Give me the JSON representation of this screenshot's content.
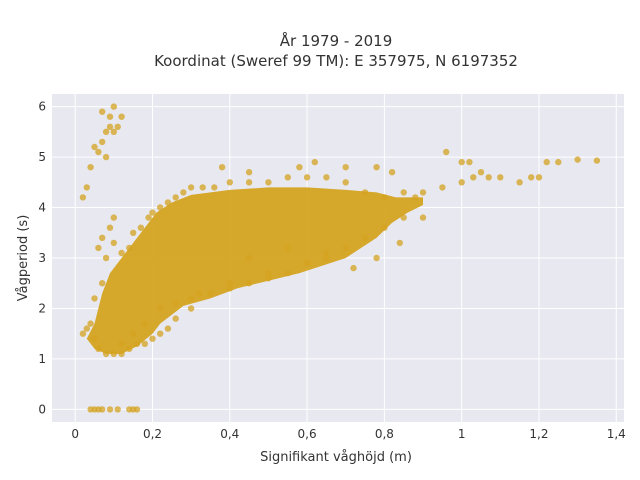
{
  "chart_data": {
    "type": "scatter",
    "title": "År 1979 - 2019",
    "subtitle": "Koordinat (Sweref 99 TM): E 357975, N 6197352",
    "xlabel": "Signifikant våghöjd (m)",
    "ylabel": "Vågperiod (s)",
    "xlim": [
      -0.06,
      1.42
    ],
    "ylim": [
      -0.25,
      6.25
    ],
    "x_ticks": [
      0,
      0.2,
      0.4,
      0.6,
      0.8,
      1,
      1.2,
      1.4
    ],
    "x_tick_labels": [
      "0",
      "0,2",
      "0,4",
      "0,6",
      "0,8",
      "1",
      "1,2",
      "1,4"
    ],
    "y_ticks": [
      0,
      1,
      2,
      3,
      4,
      5,
      6
    ],
    "y_tick_labels": [
      "0",
      "1",
      "2",
      "3",
      "4",
      "5",
      "6"
    ],
    "grid": true,
    "marker_color": "#D4A320",
    "plot_background": "#E8E8F0",
    "series": [
      {
        "points": [
          [
            0.04,
            0.0
          ],
          [
            0.05,
            0.0
          ],
          [
            0.06,
            0.0
          ],
          [
            0.07,
            0.0
          ],
          [
            0.09,
            0.0
          ],
          [
            0.11,
            0.0
          ],
          [
            0.14,
            0.0
          ],
          [
            0.15,
            0.0
          ],
          [
            0.16,
            0.0
          ],
          [
            0.02,
            1.5
          ],
          [
            0.03,
            1.6
          ],
          [
            0.05,
            1.4
          ],
          [
            0.04,
            1.7
          ],
          [
            0.06,
            1.2
          ],
          [
            0.08,
            1.1
          ],
          [
            0.1,
            1.1
          ],
          [
            0.12,
            1.1
          ],
          [
            0.14,
            1.2
          ],
          [
            0.16,
            1.3
          ],
          [
            0.18,
            1.3
          ],
          [
            0.2,
            1.4
          ],
          [
            0.22,
            1.5
          ],
          [
            0.24,
            1.6
          ],
          [
            0.26,
            1.8
          ],
          [
            0.3,
            2.0
          ],
          [
            0.05,
            2.2
          ],
          [
            0.07,
            2.5
          ],
          [
            0.08,
            3.0
          ],
          [
            0.1,
            3.3
          ],
          [
            0.12,
            3.1
          ],
          [
            0.14,
            3.2
          ],
          [
            0.15,
            3.5
          ],
          [
            0.17,
            3.6
          ],
          [
            0.19,
            3.8
          ],
          [
            0.2,
            3.9
          ],
          [
            0.22,
            4.0
          ],
          [
            0.24,
            4.1
          ],
          [
            0.26,
            4.2
          ],
          [
            0.28,
            4.3
          ],
          [
            0.3,
            4.4
          ],
          [
            0.33,
            4.4
          ],
          [
            0.36,
            4.4
          ],
          [
            0.4,
            4.5
          ],
          [
            0.45,
            4.5
          ],
          [
            0.5,
            4.5
          ],
          [
            0.55,
            4.6
          ],
          [
            0.6,
            4.6
          ],
          [
            0.65,
            4.6
          ],
          [
            0.7,
            4.5
          ],
          [
            0.22,
            2.0
          ],
          [
            0.26,
            2.1
          ],
          [
            0.3,
            2.2
          ],
          [
            0.35,
            2.3
          ],
          [
            0.4,
            2.4
          ],
          [
            0.45,
            2.5
          ],
          [
            0.5,
            2.6
          ],
          [
            0.55,
            2.7
          ],
          [
            0.6,
            2.9
          ],
          [
            0.65,
            3.1
          ],
          [
            0.7,
            3.2
          ],
          [
            0.75,
            3.4
          ],
          [
            0.8,
            3.6
          ],
          [
            0.85,
            3.8
          ],
          [
            0.75,
            4.3
          ],
          [
            0.8,
            4.2
          ],
          [
            0.85,
            4.3
          ],
          [
            0.88,
            4.2
          ],
          [
            0.9,
            4.3
          ],
          [
            0.95,
            4.4
          ],
          [
            1.0,
            4.5
          ],
          [
            1.03,
            4.6
          ],
          [
            1.07,
            4.6
          ],
          [
            1.1,
            4.6
          ],
          [
            1.15,
            4.5
          ],
          [
            1.18,
            4.6
          ],
          [
            1.2,
            4.6
          ],
          [
            1.22,
            4.9
          ],
          [
            1.25,
            4.9
          ],
          [
            1.3,
            4.95
          ],
          [
            1.35,
            4.93
          ],
          [
            0.96,
            5.1
          ],
          [
            1.0,
            4.9
          ],
          [
            1.02,
            4.9
          ],
          [
            1.05,
            4.7
          ],
          [
            0.62,
            4.9
          ],
          [
            0.7,
            4.8
          ],
          [
            0.78,
            4.8
          ],
          [
            0.82,
            4.7
          ],
          [
            0.58,
            4.8
          ],
          [
            0.45,
            4.7
          ],
          [
            0.38,
            4.8
          ],
          [
            0.06,
            5.1
          ],
          [
            0.07,
            5.3
          ],
          [
            0.08,
            5.5
          ],
          [
            0.09,
            5.6
          ],
          [
            0.1,
            5.5
          ],
          [
            0.11,
            5.6
          ],
          [
            0.12,
            5.8
          ],
          [
            0.09,
            5.8
          ],
          [
            0.07,
            5.9
          ],
          [
            0.1,
            6.0
          ],
          [
            0.08,
            5.0
          ],
          [
            0.05,
            5.2
          ],
          [
            0.04,
            4.8
          ],
          [
            0.03,
            4.4
          ],
          [
            0.02,
            4.2
          ],
          [
            0.06,
            3.2
          ],
          [
            0.07,
            3.4
          ],
          [
            0.09,
            3.6
          ],
          [
            0.1,
            3.8
          ],
          [
            0.45,
            3.0
          ],
          [
            0.55,
            3.2
          ],
          [
            0.65,
            3.0
          ],
          [
            0.72,
            2.8
          ],
          [
            0.78,
            3.0
          ],
          [
            0.84,
            3.3
          ],
          [
            0.9,
            3.8
          ],
          [
            0.5,
            2.7
          ],
          [
            0.4,
            2.5
          ],
          [
            0.32,
            2.3
          ],
          [
            0.18,
            1.7
          ],
          [
            0.15,
            1.5
          ],
          [
            0.12,
            1.3
          ]
        ]
      }
    ]
  }
}
